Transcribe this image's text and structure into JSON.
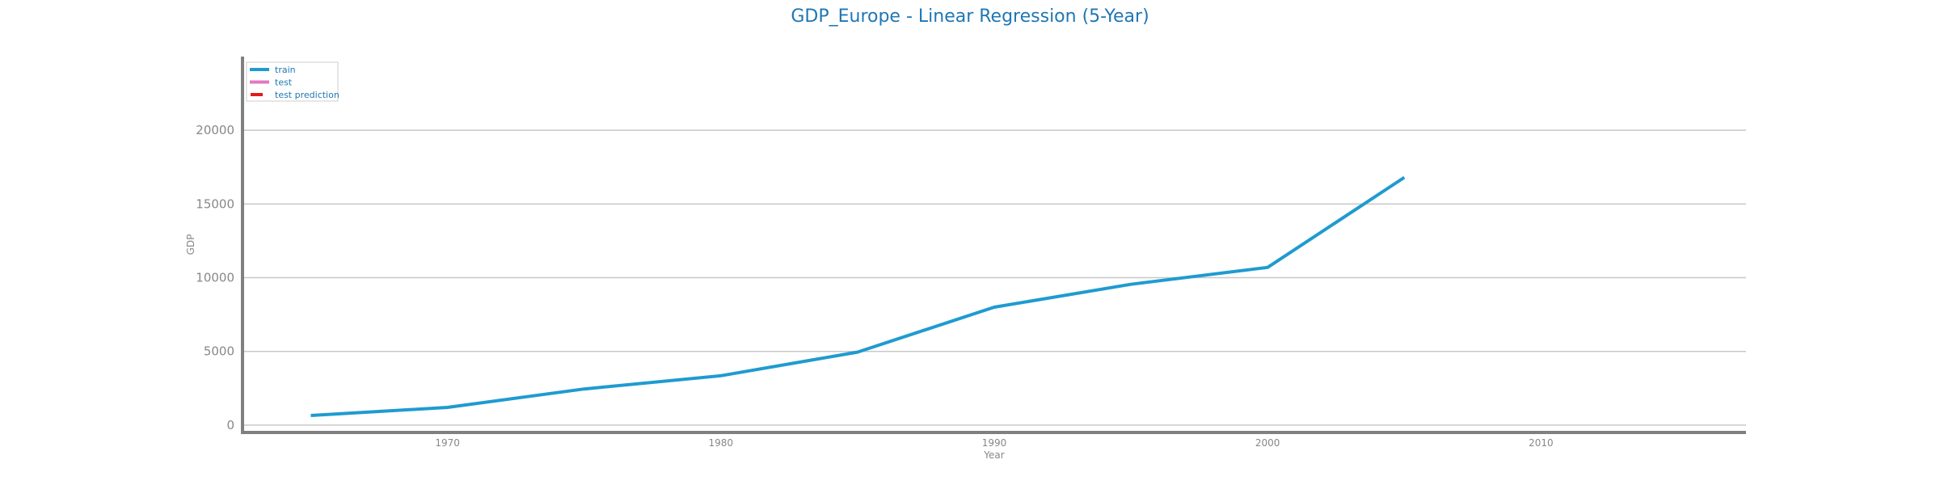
{
  "chart_data": {
    "type": "line",
    "title": "GDP_Europe - Linear Regression (5-Year)",
    "xlabel": "Year",
    "ylabel": "GDP",
    "xlim": [
      1962.5,
      2017.5
    ],
    "ylim": [
      -500,
      25000
    ],
    "x_ticks": [
      1970,
      1980,
      1990,
      2000,
      2010
    ],
    "y_ticks": [
      0,
      5000,
      10000,
      15000,
      20000
    ],
    "grid": "horizontal",
    "legend_position": "top-left",
    "series": [
      {
        "name": "train",
        "color": "#1f9bd0",
        "x": [
          1965,
          1970,
          1975,
          1980,
          1985,
          1990,
          1995,
          2000,
          2005
        ],
        "y": [
          650,
          1200,
          2450,
          3350,
          4950,
          8000,
          9550,
          10700,
          16800
        ]
      },
      {
        "name": "test",
        "color": "#e377c2",
        "x": [],
        "y": []
      },
      {
        "name": "test prediction",
        "color": "#e31a1c",
        "style": "dashed",
        "x": [],
        "y": []
      }
    ]
  }
}
